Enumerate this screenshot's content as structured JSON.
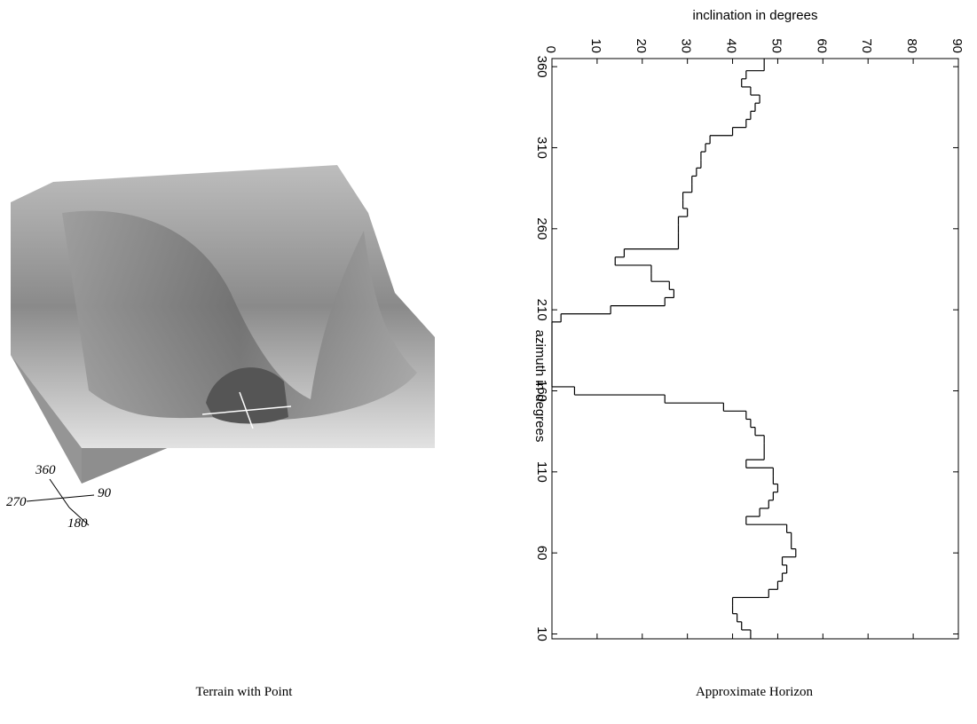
{
  "chart_data": {
    "type": "step",
    "x_label": "azimuth in degrees",
    "y_label": "inclination in degrees",
    "x": [
      360,
      355,
      350,
      345,
      340,
      335,
      330,
      325,
      320,
      315,
      310,
      305,
      300,
      295,
      290,
      285,
      280,
      275,
      270,
      265,
      260,
      255,
      250,
      245,
      240,
      235,
      230,
      225,
      220,
      215,
      210,
      205,
      200,
      195,
      190,
      185,
      180,
      175,
      170,
      165,
      160,
      155,
      150,
      145,
      140,
      135,
      130,
      125,
      120,
      115,
      110,
      105,
      100,
      95,
      90,
      85,
      80,
      75,
      70,
      65,
      60,
      55,
      50,
      45,
      40,
      35,
      30,
      25,
      20,
      15,
      10
    ],
    "values": [
      47,
      43,
      42,
      44,
      46,
      45,
      44,
      43,
      40,
      35,
      34,
      33,
      33,
      32,
      31,
      31,
      29,
      29,
      30,
      28,
      28,
      28,
      28,
      16,
      14,
      22,
      22,
      26,
      27,
      25,
      13,
      2,
      0,
      0,
      0,
      0,
      0,
      0,
      0,
      0,
      5,
      25,
      38,
      43,
      44,
      45,
      47,
      47,
      47,
      43,
      49,
      49,
      50,
      49,
      48,
      46,
      43,
      52,
      53,
      53,
      54,
      51,
      52,
      51,
      50,
      48,
      40,
      40,
      41,
      42,
      44
    ],
    "color": "#000000",
    "xlim": [
      7,
      365
    ],
    "xticks": [
      10,
      60,
      110,
      160,
      210,
      260,
      310,
      360
    ],
    "ylim": [
      0,
      90
    ],
    "yticks": [
      0,
      10,
      20,
      30,
      40,
      50,
      60,
      70,
      80,
      90
    ]
  },
  "compass_labels": [
    "360",
    "270",
    "90",
    "180"
  ],
  "captions": [
    "Terrain with Point",
    "Approximate Horizon"
  ]
}
